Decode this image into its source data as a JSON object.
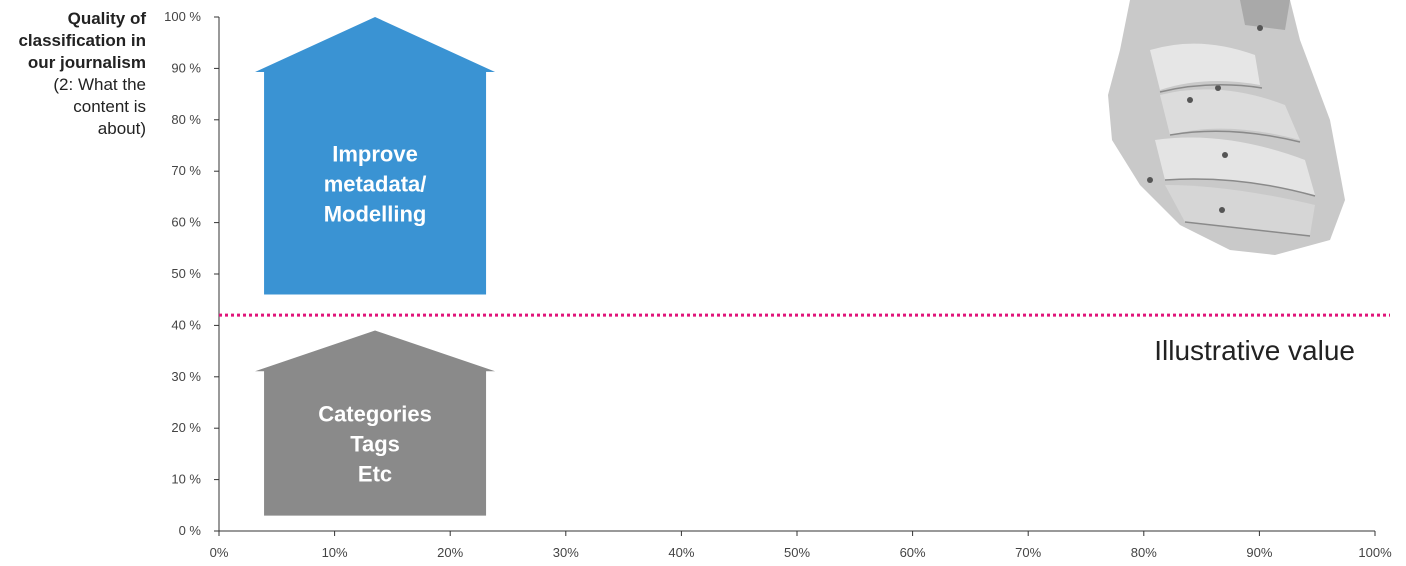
{
  "y_title": {
    "line1": "Quality of",
    "line2": "classification in",
    "line3": "our journalism",
    "sub1": "(2: What the",
    "sub2": "content is",
    "sub3": "about)"
  },
  "chart_data": {
    "type": "annotated-axes",
    "x_ticks": [
      "0%",
      "10%",
      "20%",
      "30%",
      "40%",
      "50%",
      "60%",
      "70%",
      "80%",
      "90%",
      "100%"
    ],
    "y_ticks": [
      "0 %",
      "10 %",
      "20 %",
      "30 %",
      "40 %",
      "50 %",
      "60 %",
      "70 %",
      "80 %",
      "90 %",
      "100 %"
    ],
    "xlim": [
      0,
      100
    ],
    "ylim": [
      0,
      100
    ],
    "reference_line": {
      "y": 42,
      "label": "Illustrative value",
      "color": "#e0157a",
      "style": "dotted"
    },
    "arrows": [
      {
        "x_center": 13.5,
        "y_base": 3,
        "y_top": 39,
        "lines": [
          "Categories",
          "Tags",
          "Etc"
        ],
        "color": "#8a8a8a"
      },
      {
        "x_center": 13.5,
        "y_base": 46,
        "y_top": 100,
        "lines": [
          "Improve",
          "metadata/",
          "Modelling"
        ],
        "color": "#3a93d3"
      }
    ],
    "grid": false
  },
  "decor": {
    "image": "robot-hand-icon"
  }
}
